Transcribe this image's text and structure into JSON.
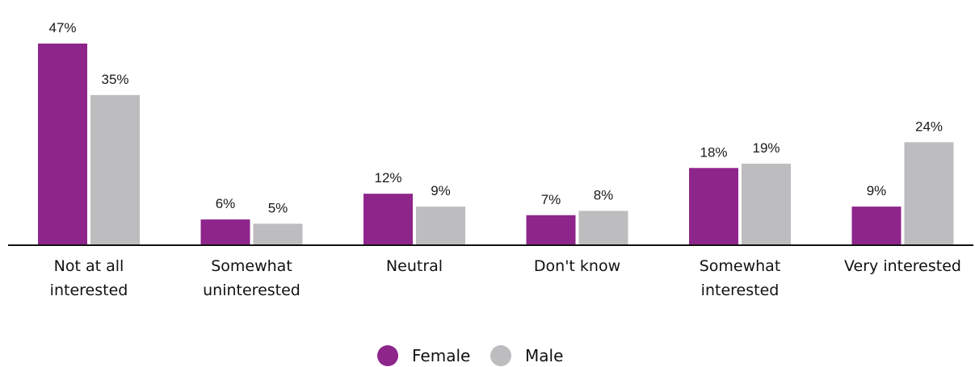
{
  "chart_data": {
    "type": "bar",
    "categories": [
      [
        "Not at all",
        "interested"
      ],
      [
        "Somewhat",
        "uninterested"
      ],
      [
        "Neutral"
      ],
      [
        "Don't know"
      ],
      [
        "Somewhat",
        "interested"
      ],
      [
        "Very interested"
      ]
    ],
    "series": [
      {
        "name": "Female",
        "values": [
          47,
          6,
          12,
          7,
          18,
          9
        ],
        "labels": [
          "47%",
          "6%",
          "12%",
          "7%",
          "18%",
          "9%"
        ],
        "color": "#8e258b"
      },
      {
        "name": "Male",
        "values": [
          35,
          5,
          9,
          8,
          19,
          24
        ],
        "labels": [
          "35%",
          "5%",
          "9%",
          "8%",
          "19%",
          "24%"
        ],
        "color": "#bdbdbf"
      }
    ],
    "ylim": [
      0,
      47
    ],
    "grid": false,
    "legend_position": "bottom-center"
  }
}
